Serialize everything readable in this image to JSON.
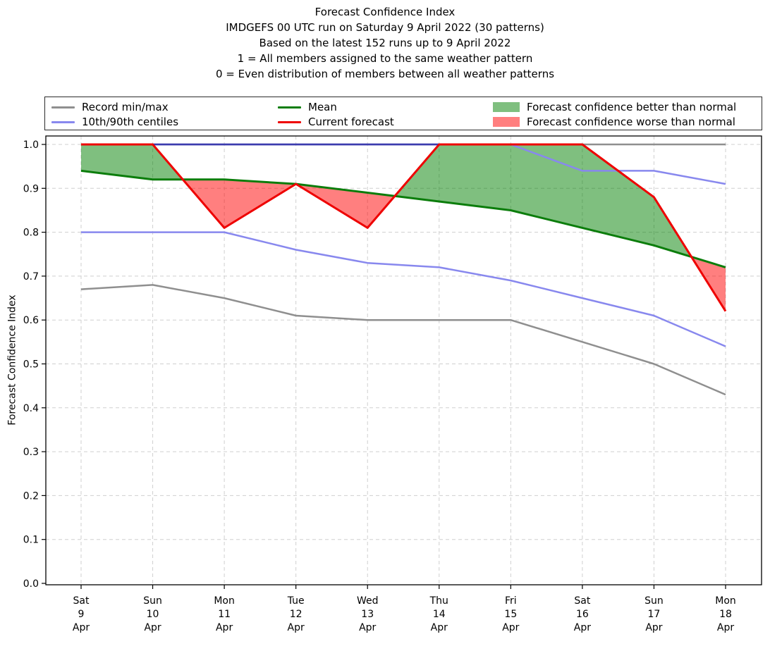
{
  "title": {
    "lines": [
      "Forecast Confidence Index",
      "IMDGEFS 00 UTC run on Saturday 9 April 2022 (30 patterns)",
      "Based on the latest 152 runs up to 9 April 2022",
      "1 = All members assigned to the same weather pattern",
      "0 = Even distribution of members between all weather patterns"
    ]
  },
  "legend": {
    "items": [
      {
        "label": "Record min/max",
        "swatch": "line",
        "color": "#8f8f8f"
      },
      {
        "label": "10th/90th centiles",
        "swatch": "line",
        "color": "#8888ee"
      },
      {
        "label": "Mean",
        "swatch": "line",
        "color": "#0b7d0b"
      },
      {
        "label": "Current forecast",
        "swatch": "line",
        "color": "#ee0000"
      },
      {
        "label": "Forecast confidence better than normal",
        "swatch": "patch",
        "color": "#7fbf7f"
      },
      {
        "label": "Forecast confidence worse than normal",
        "swatch": "patch",
        "color": "#ff7f7f"
      }
    ]
  },
  "chart_data": {
    "type": "line",
    "title": "Forecast Confidence Index",
    "xlabel": "",
    "ylabel": "Forecast Confidence Index",
    "ylim": [
      0.0,
      1.0
    ],
    "ytick_step": 0.1,
    "grid": true,
    "legend_position": "top",
    "categories": [
      [
        "Sat",
        "9",
        "Apr"
      ],
      [
        "Sun",
        "10",
        "Apr"
      ],
      [
        "Mon",
        "11",
        "Apr"
      ],
      [
        "Tue",
        "12",
        "Apr"
      ],
      [
        "Wed",
        "13",
        "Apr"
      ],
      [
        "Thu",
        "14",
        "Apr"
      ],
      [
        "Fri",
        "15",
        "Apr"
      ],
      [
        "Sat",
        "16",
        "Apr"
      ],
      [
        "Sun",
        "17",
        "Apr"
      ],
      [
        "Mon",
        "18",
        "Apr"
      ]
    ],
    "series": [
      {
        "name": "Record max",
        "color": "#8f8f8f",
        "width": 2.5,
        "values": [
          1.0,
          1.0,
          1.0,
          1.0,
          1.0,
          1.0,
          1.0,
          1.0,
          1.0,
          1.0
        ]
      },
      {
        "name": "Record min",
        "color": "#8f8f8f",
        "width": 2.5,
        "values": [
          0.67,
          0.68,
          0.65,
          0.61,
          0.6,
          0.6,
          0.6,
          0.55,
          0.5,
          0.43
        ]
      },
      {
        "name": "90th centile",
        "color": "#8888ee",
        "width": 2.5,
        "values": [
          1.0,
          1.0,
          1.0,
          1.0,
          1.0,
          1.0,
          1.0,
          0.94,
          0.94,
          0.91
        ]
      },
      {
        "name": "10th centile",
        "color": "#8888ee",
        "width": 2.5,
        "values": [
          0.8,
          0.8,
          0.8,
          0.76,
          0.73,
          0.72,
          0.69,
          0.65,
          0.61,
          0.54
        ]
      },
      {
        "name": "Mean",
        "color": "#0b7d0b",
        "width": 3,
        "values": [
          0.94,
          0.92,
          0.92,
          0.91,
          0.89,
          0.87,
          0.85,
          0.81,
          0.77,
          0.72
        ]
      },
      {
        "name": "Current forecast",
        "color": "#ee0000",
        "width": 3,
        "values": [
          1.0,
          1.0,
          0.81,
          0.91,
          0.81,
          1.0,
          1.0,
          1.0,
          0.88,
          0.62
        ]
      }
    ],
    "fills": {
      "between": [
        "Current forecast",
        "Mean"
      ],
      "better_color": "#008000",
      "worse_color": "#ff0000",
      "opacity": 0.5
    },
    "overlay_line": {
      "note": "90th centile coinciding with record max renders dark blue",
      "color": "#3c3cae",
      "value": 1.0,
      "from_index": 0,
      "to_index": 6,
      "width": 2.5
    }
  }
}
